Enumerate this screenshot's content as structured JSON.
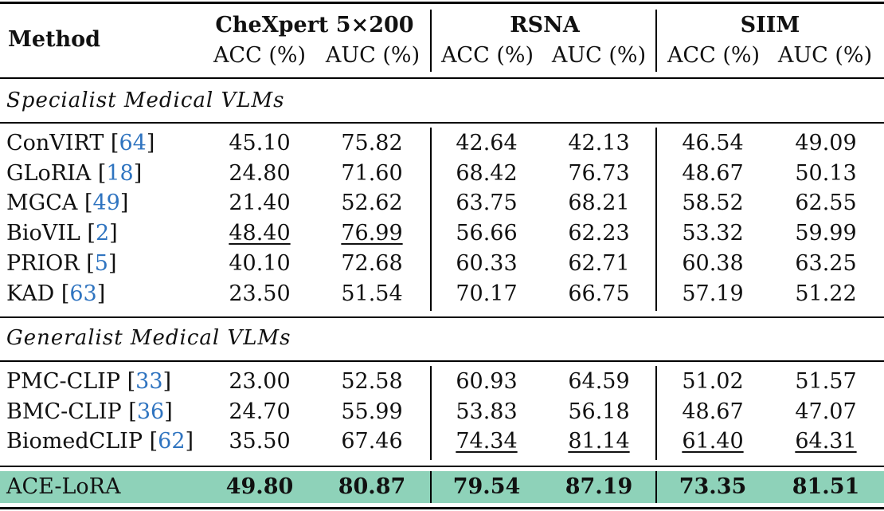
{
  "header": {
    "method": "Method",
    "groups": [
      {
        "name": "CheXpert 5×200",
        "cols": [
          "ACC (%)",
          "AUC (%)"
        ]
      },
      {
        "name": "RSNA",
        "cols": [
          "ACC (%)",
          "AUC (%)"
        ]
      },
      {
        "name": "SIIM",
        "cols": [
          "ACC (%)",
          "AUC (%)"
        ]
      }
    ]
  },
  "sections": [
    {
      "title": "Specialist Medical VLMs",
      "rows": [
        {
          "name": "ConVIRT",
          "ref": "64",
          "values": [
            "45.10",
            "75.82",
            "42.64",
            "42.13",
            "46.54",
            "49.09"
          ]
        },
        {
          "name": "GLoRIA",
          "ref": "18",
          "values": [
            "24.80",
            "71.60",
            "68.42",
            "76.73",
            "48.67",
            "50.13"
          ]
        },
        {
          "name": "MGCA",
          "ref": "49",
          "values": [
            "21.40",
            "52.62",
            "63.75",
            "68.21",
            "58.52",
            "62.55"
          ]
        },
        {
          "name": "BioVIL",
          "ref": "2",
          "values": [
            "48.40",
            "76.99",
            "56.66",
            "62.23",
            "53.32",
            "59.99"
          ]
        },
        {
          "name": "PRIOR",
          "ref": "5",
          "values": [
            "40.10",
            "72.68",
            "60.33",
            "62.71",
            "60.38",
            "63.25"
          ]
        },
        {
          "name": "KAD",
          "ref": "63",
          "values": [
            "23.50",
            "51.54",
            "70.17",
            "66.75",
            "57.19",
            "51.22"
          ]
        }
      ]
    },
    {
      "title": "Generalist Medical VLMs",
      "rows": [
        {
          "name": "PMC-CLIP",
          "ref": "33",
          "values": [
            "23.00",
            "52.58",
            "60.93",
            "64.59",
            "51.02",
            "51.57"
          ]
        },
        {
          "name": "BMC-CLIP",
          "ref": "36",
          "values": [
            "24.70",
            "55.99",
            "53.83",
            "56.18",
            "48.67",
            "47.07"
          ]
        },
        {
          "name": "BiomedCLIP",
          "ref": "62",
          "values": [
            "35.50",
            "67.46",
            "74.34",
            "81.14",
            "61.40",
            "64.31"
          ]
        }
      ]
    }
  ],
  "ours": {
    "name": "ACE-LoRA",
    "values": [
      "49.80",
      "80.87",
      "79.54",
      "87.19",
      "73.35",
      "81.51"
    ]
  },
  "colors": {
    "ref": "#2f74c0",
    "highlight": "#8ed2b9"
  }
}
